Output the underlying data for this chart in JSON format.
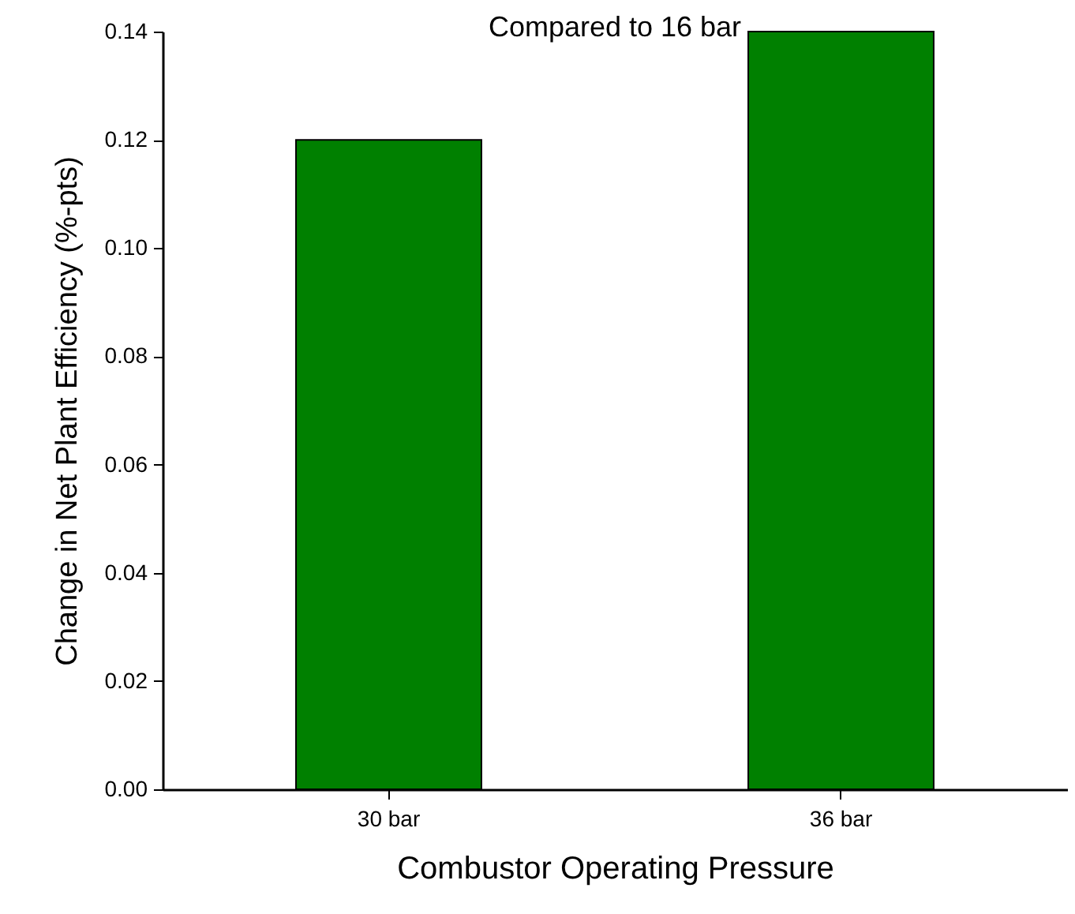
{
  "chart_data": {
    "type": "bar",
    "title": "Compared to 16 bar",
    "xlabel": "Combustor Operating Pressure",
    "ylabel": "Change in Net Plant Efficiency (%-pts)",
    "categories": [
      "30 bar",
      "36 bar"
    ],
    "values": [
      0.12,
      0.14
    ],
    "color": "#008000",
    "ylim": [
      0,
      0.14
    ],
    "yticks": [
      {
        "value": 0,
        "label": "0.00"
      },
      {
        "value": 0.02,
        "label": "0.02"
      },
      {
        "value": 0.04,
        "label": "0.04"
      },
      {
        "value": 0.06,
        "label": "0.06"
      },
      {
        "value": 0.08,
        "label": "0.08"
      },
      {
        "value": 0.1,
        "label": "0.10"
      },
      {
        "value": 0.12,
        "label": "0.12"
      },
      {
        "value": 0.14,
        "label": "0.14"
      }
    ],
    "grid": false
  }
}
